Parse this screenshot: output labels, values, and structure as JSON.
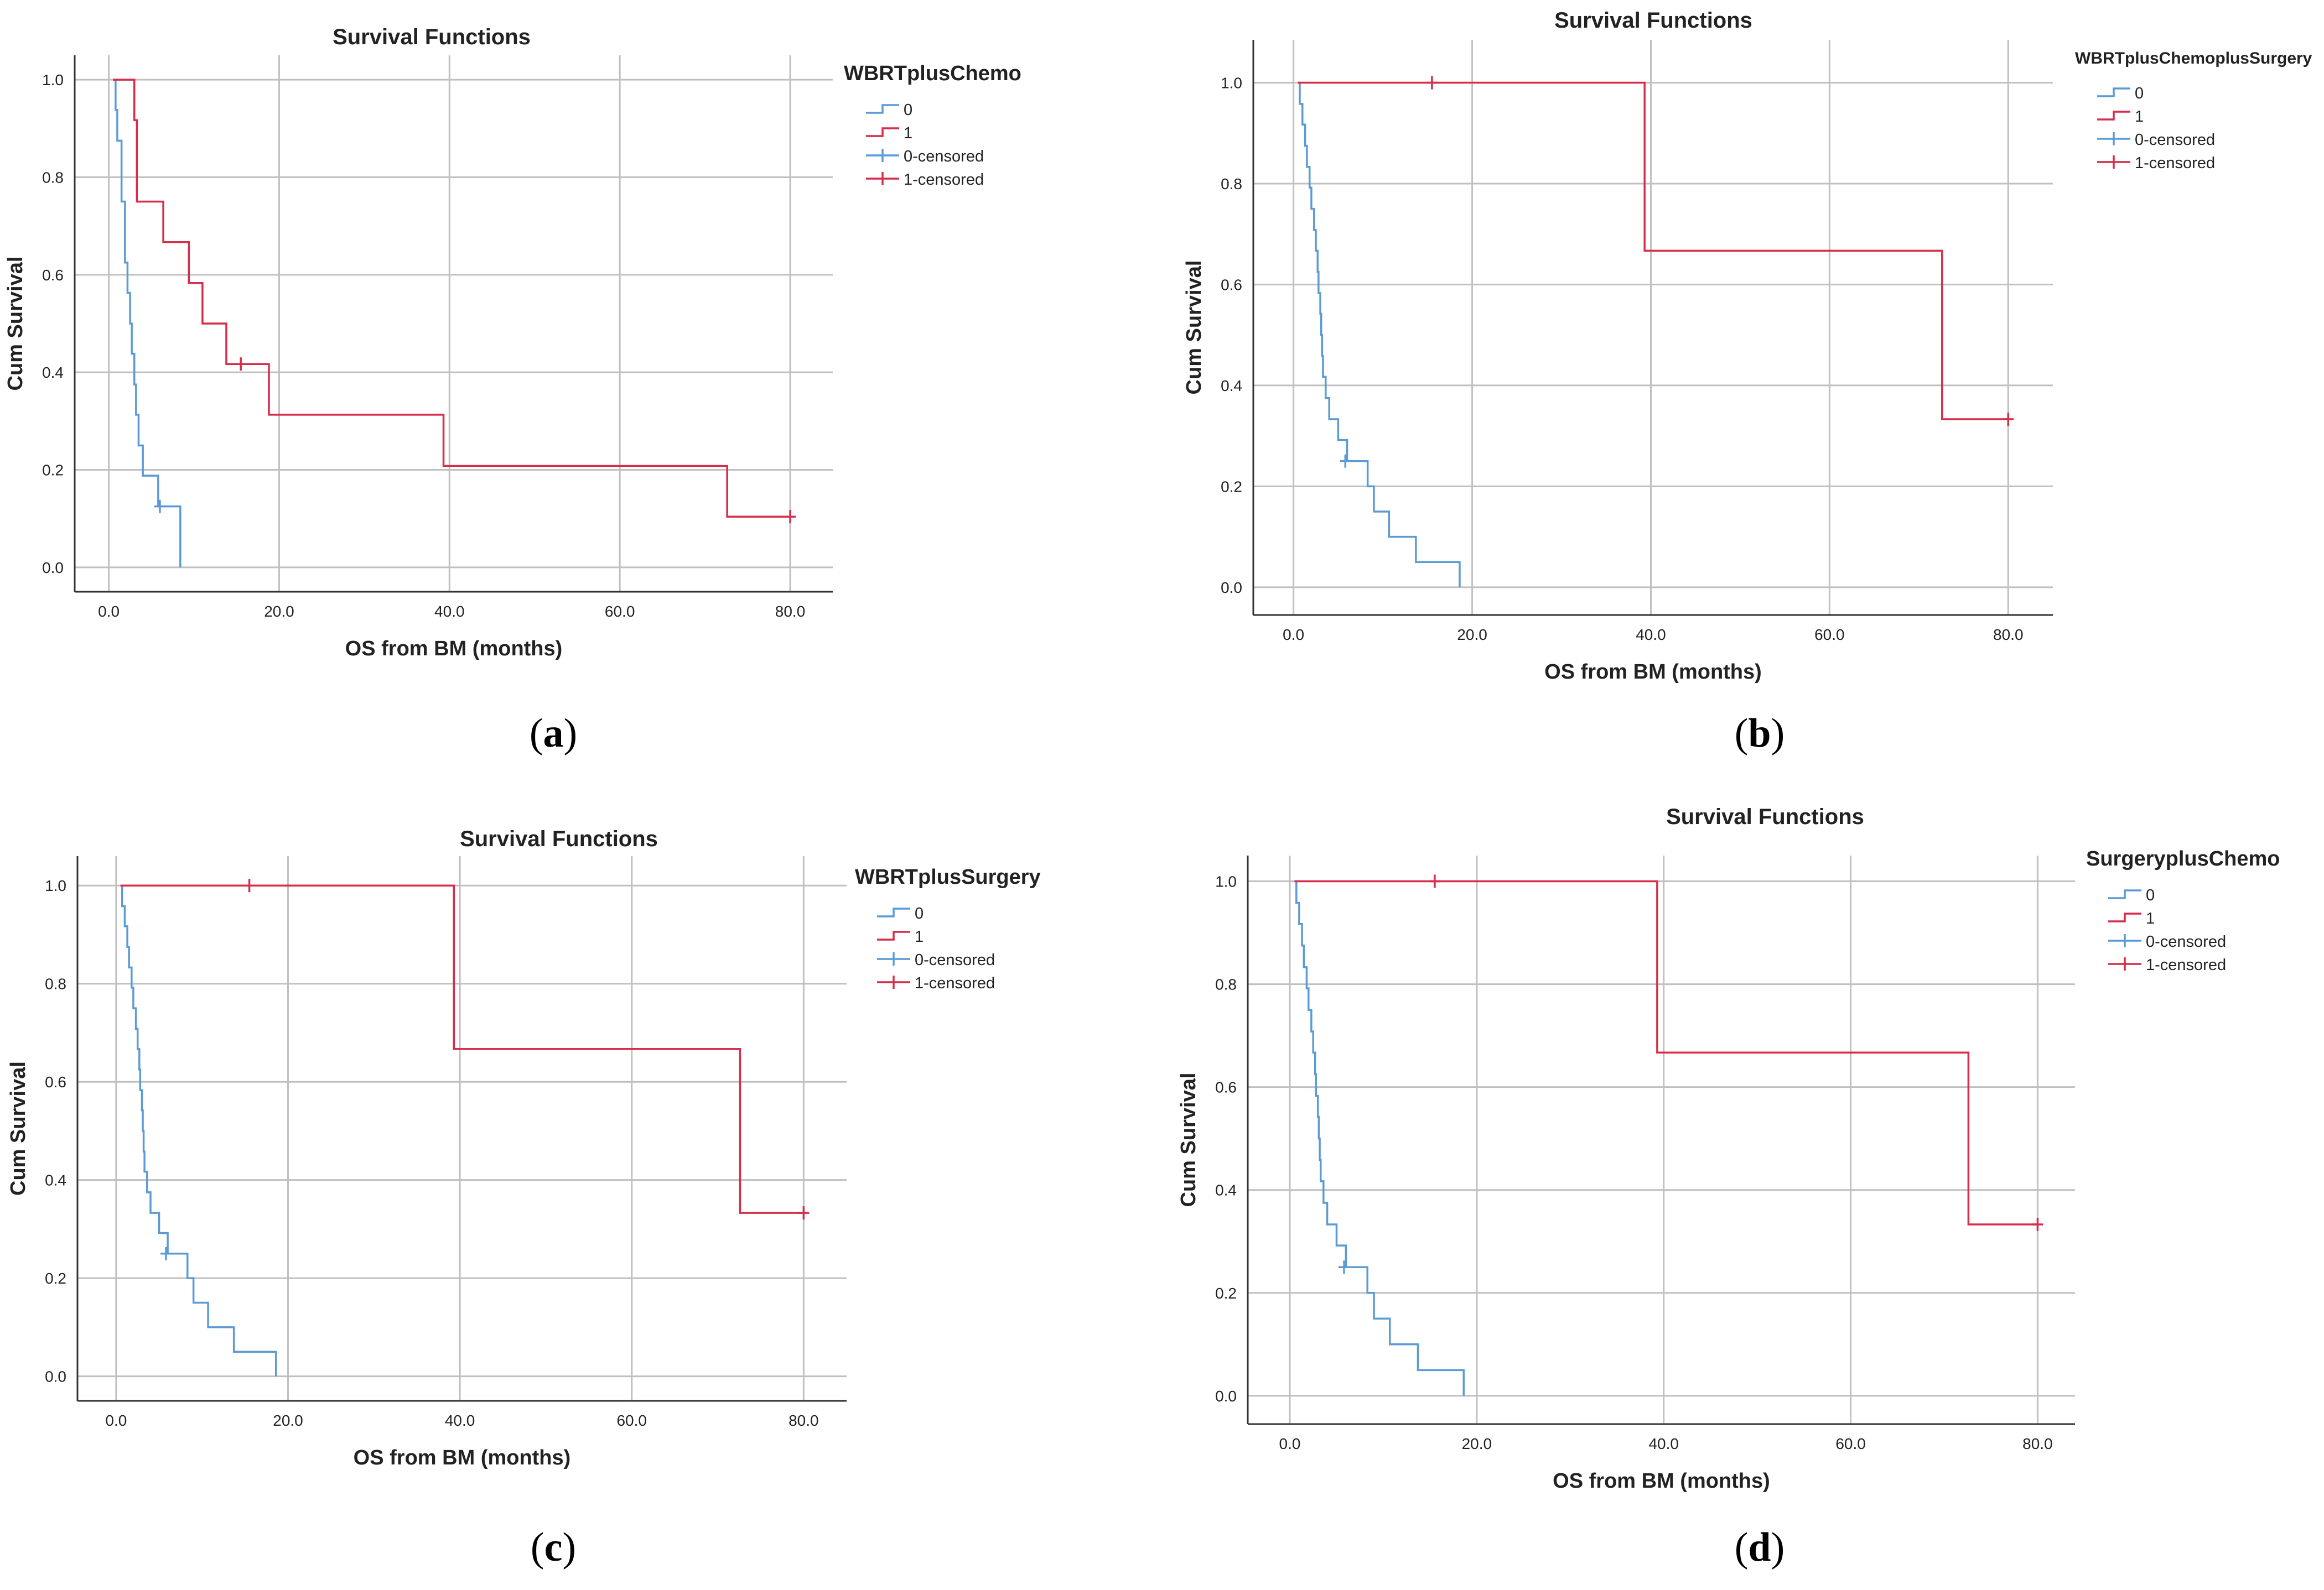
{
  "figure": {
    "panel_labels": [
      "a",
      "b",
      "c",
      "d"
    ]
  },
  "style": {
    "group0_color": "#5b9bd5",
    "group1_color": "#d62d4a",
    "grid_color": "#c0c0c0",
    "axis_color": "#333333"
  },
  "chart_data": [
    {
      "type": "line",
      "subtype": "kaplan-meier",
      "title": "Survival Functions",
      "xlabel": "OS from BM (months)",
      "ylabel": "Cum Survival",
      "legend_title": "WBRTplusChemo",
      "legend_entries": [
        "0",
        "1",
        "0-censored",
        "1-censored"
      ],
      "legend_position": "right",
      "xlim": [
        -4,
        85
      ],
      "ylim": [
        -0.05,
        1.05
      ],
      "xticks": [
        0,
        20,
        40,
        60,
        80
      ],
      "xtick_labels": [
        "0.0",
        "20.0",
        "40.0",
        "60.0",
        "80.0"
      ],
      "yticks": [
        0,
        0.2,
        0.4,
        0.6,
        0.8,
        1.0
      ],
      "ytick_labels": [
        "0.0",
        "0.2",
        "0.4",
        "0.6",
        "0.8",
        "1.0"
      ],
      "grid": true,
      "series": [
        {
          "name": "0",
          "steps": [
            [
              0.5,
              1.0
            ],
            [
              0.8,
              0.938
            ],
            [
              1.0,
              0.875
            ],
            [
              1.5,
              0.75
            ],
            [
              1.9,
              0.625
            ],
            [
              2.2,
              0.563
            ],
            [
              2.5,
              0.5
            ],
            [
              2.7,
              0.438
            ],
            [
              3.0,
              0.375
            ],
            [
              3.2,
              0.313
            ],
            [
              3.5,
              0.25
            ],
            [
              4.0,
              0.188
            ],
            [
              5.8,
              0.125
            ]
          ],
          "end": 8.4,
          "drop_to": 0.0,
          "censored": [
            [
              6.0,
              0.125
            ]
          ]
        },
        {
          "name": "1",
          "steps": [
            [
              0.5,
              1.0
            ],
            [
              3.0,
              0.917
            ],
            [
              3.3,
              0.75
            ],
            [
              6.4,
              0.667
            ],
            [
              9.4,
              0.583
            ],
            [
              11.0,
              0.5
            ],
            [
              13.8,
              0.417
            ],
            [
              18.8,
              0.313
            ],
            [
              39.3,
              0.208
            ],
            [
              72.6,
              0.104
            ]
          ],
          "end": 80.0,
          "censored": [
            [
              15.5,
              0.417
            ],
            [
              80.0,
              0.104
            ]
          ]
        }
      ]
    },
    {
      "type": "line",
      "subtype": "kaplan-meier",
      "title": "Survival Functions",
      "xlabel": "OS from BM (months)",
      "ylabel": "Cum Survival",
      "legend_title": "WBRTplusChemoplusSurgery",
      "legend_entries": [
        "0",
        "1",
        "0-censored",
        "1-censored"
      ],
      "legend_position": "right",
      "xlim": [
        -4.5,
        85
      ],
      "ylim": [
        -0.055,
        1.085
      ],
      "xticks": [
        0,
        20,
        40,
        60,
        80
      ],
      "xtick_labels": [
        "0.0",
        "20.0",
        "40.0",
        "60.0",
        "80.0"
      ],
      "yticks": [
        0,
        0.2,
        0.4,
        0.6,
        0.8,
        1.0
      ],
      "ytick_labels": [
        "0.0",
        "0.2",
        "0.4",
        "0.6",
        "0.8",
        "1.0"
      ],
      "grid": true,
      "series": [
        {
          "name": "0",
          "steps": [
            [
              0.5,
              1.0
            ],
            [
              0.7,
              0.958
            ],
            [
              1.0,
              0.917
            ],
            [
              1.3,
              0.875
            ],
            [
              1.5,
              0.833
            ],
            [
              1.8,
              0.792
            ],
            [
              2.0,
              0.75
            ],
            [
              2.3,
              0.708
            ],
            [
              2.5,
              0.667
            ],
            [
              2.7,
              0.625
            ],
            [
              2.8,
              0.583
            ],
            [
              3.0,
              0.542
            ],
            [
              3.1,
              0.5
            ],
            [
              3.2,
              0.458
            ],
            [
              3.3,
              0.417
            ],
            [
              3.6,
              0.375
            ],
            [
              4.0,
              0.333
            ],
            [
              5.0,
              0.292
            ],
            [
              6.0,
              0.25
            ],
            [
              8.3,
              0.2
            ],
            [
              9.0,
              0.15
            ],
            [
              10.7,
              0.1
            ],
            [
              13.7,
              0.05
            ]
          ],
          "end": 18.6,
          "drop_to": 0.0,
          "censored": [
            [
              5.8,
              0.25
            ]
          ]
        },
        {
          "name": "1",
          "steps": [
            [
              0.5,
              1.0
            ],
            [
              39.3,
              0.667
            ],
            [
              72.6,
              0.333
            ]
          ],
          "end": 80.0,
          "censored": [
            [
              15.5,
              1.0
            ],
            [
              80.0,
              0.333
            ]
          ]
        }
      ]
    },
    {
      "type": "line",
      "subtype": "kaplan-meier",
      "title": "Survival Functions",
      "xlabel": "OS from BM (months)",
      "ylabel": "Cum Survival",
      "legend_title": "WBRTplusSurgery",
      "legend_entries": [
        "0",
        "1",
        "0-censored",
        "1-censored"
      ],
      "legend_position": "right",
      "xlim": [
        -4.5,
        85
      ],
      "ylim": [
        -0.05,
        1.06
      ],
      "xticks": [
        0,
        20,
        40,
        60,
        80
      ],
      "xtick_labels": [
        "0.0",
        "20.0",
        "40.0",
        "60.0",
        "80.0"
      ],
      "yticks": [
        0,
        0.2,
        0.4,
        0.6,
        0.8,
        1.0
      ],
      "ytick_labels": [
        "0.0",
        "0.2",
        "0.4",
        "0.6",
        "0.8",
        "1.0"
      ],
      "grid": true,
      "series": [
        {
          "name": "0",
          "steps": [
            [
              0.5,
              1.0
            ],
            [
              0.7,
              0.958
            ],
            [
              1.0,
              0.917
            ],
            [
              1.3,
              0.875
            ],
            [
              1.5,
              0.833
            ],
            [
              1.8,
              0.792
            ],
            [
              2.0,
              0.75
            ],
            [
              2.3,
              0.708
            ],
            [
              2.5,
              0.667
            ],
            [
              2.7,
              0.625
            ],
            [
              2.8,
              0.583
            ],
            [
              3.0,
              0.542
            ],
            [
              3.1,
              0.5
            ],
            [
              3.2,
              0.458
            ],
            [
              3.3,
              0.417
            ],
            [
              3.6,
              0.375
            ],
            [
              4.0,
              0.333
            ],
            [
              5.0,
              0.292
            ],
            [
              6.0,
              0.25
            ],
            [
              8.3,
              0.2
            ],
            [
              9.0,
              0.15
            ],
            [
              10.7,
              0.1
            ],
            [
              13.7,
              0.05
            ]
          ],
          "end": 18.6,
          "drop_to": 0.0,
          "censored": [
            [
              5.8,
              0.25
            ]
          ]
        },
        {
          "name": "1",
          "steps": [
            [
              0.5,
              1.0
            ],
            [
              39.3,
              0.667
            ],
            [
              72.6,
              0.333
            ]
          ],
          "end": 80.0,
          "censored": [
            [
              15.5,
              1.0
            ],
            [
              80.0,
              0.333
            ]
          ]
        }
      ]
    },
    {
      "type": "line",
      "subtype": "kaplan-meier",
      "title": "Survival Functions",
      "xlabel": "OS from BM (months)",
      "ylabel": "Cum Survival",
      "legend_title": "SurgeryplusChemo",
      "legend_entries": [
        "0",
        "1",
        "0-censored",
        "1-censored"
      ],
      "legend_position": "right",
      "xlim": [
        -4.5,
        84
      ],
      "ylim": [
        -0.055,
        1.05
      ],
      "xticks": [
        0,
        20,
        40,
        60,
        80
      ],
      "xtick_labels": [
        "0.0",
        "20.0",
        "40.0",
        "60.0",
        "80.0"
      ],
      "yticks": [
        0,
        0.2,
        0.4,
        0.6,
        0.8,
        1.0
      ],
      "ytick_labels": [
        "0.0",
        "0.2",
        "0.4",
        "0.6",
        "0.8",
        "1.0"
      ],
      "grid": true,
      "series": [
        {
          "name": "0",
          "steps": [
            [
              0.5,
              1.0
            ],
            [
              0.7,
              0.958
            ],
            [
              1.0,
              0.917
            ],
            [
              1.3,
              0.875
            ],
            [
              1.5,
              0.833
            ],
            [
              1.8,
              0.792
            ],
            [
              2.0,
              0.75
            ],
            [
              2.3,
              0.708
            ],
            [
              2.5,
              0.667
            ],
            [
              2.7,
              0.625
            ],
            [
              2.8,
              0.583
            ],
            [
              3.0,
              0.542
            ],
            [
              3.1,
              0.5
            ],
            [
              3.2,
              0.458
            ],
            [
              3.3,
              0.417
            ],
            [
              3.6,
              0.375
            ],
            [
              4.0,
              0.333
            ],
            [
              5.0,
              0.292
            ],
            [
              6.0,
              0.25
            ],
            [
              8.3,
              0.2
            ],
            [
              9.0,
              0.15
            ],
            [
              10.7,
              0.1
            ],
            [
              13.7,
              0.05
            ]
          ],
          "end": 18.6,
          "drop_to": 0.0,
          "censored": [
            [
              5.8,
              0.25
            ]
          ]
        },
        {
          "name": "1",
          "steps": [
            [
              0.5,
              1.0
            ],
            [
              39.3,
              0.667
            ],
            [
              72.6,
              0.333
            ]
          ],
          "end": 80.0,
          "censored": [
            [
              15.5,
              1.0
            ],
            [
              80.0,
              0.333
            ]
          ]
        }
      ]
    }
  ]
}
